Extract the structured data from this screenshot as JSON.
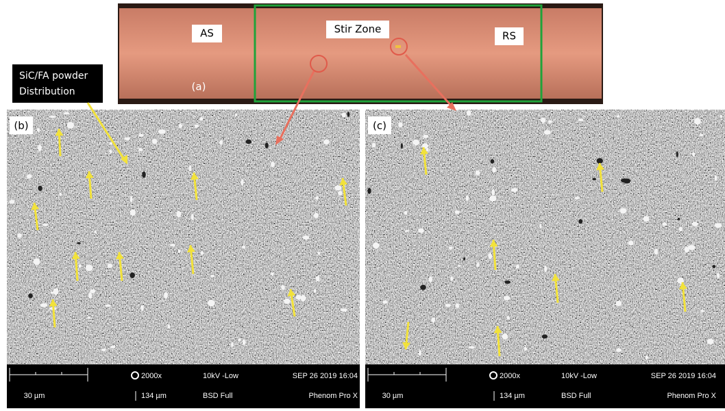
{
  "panel_a": {
    "label": "(a)",
    "left": "AS",
    "center": "Stir Zone",
    "right": "RS"
  },
  "callout": [
    "SiC/FA powder",
    "Distribution"
  ],
  "panels": [
    {
      "label": "(b)",
      "scale": "30 µm",
      "magnification": "2000x",
      "field": "134 µm",
      "voltage": "10kV -Low",
      "detector": "BSD Full",
      "date": "SEP 26 2019 16:04",
      "instrument": "Phenom Pro X"
    },
    {
      "label": "(c)",
      "scale": "30 µm",
      "magnification": "2000x",
      "field": "134 µm",
      "voltage": "10kV -Low",
      "detector": "BSD Full",
      "date": "SEP 26 2019 16:04",
      "instrument": "Phenom Pro X"
    }
  ]
}
